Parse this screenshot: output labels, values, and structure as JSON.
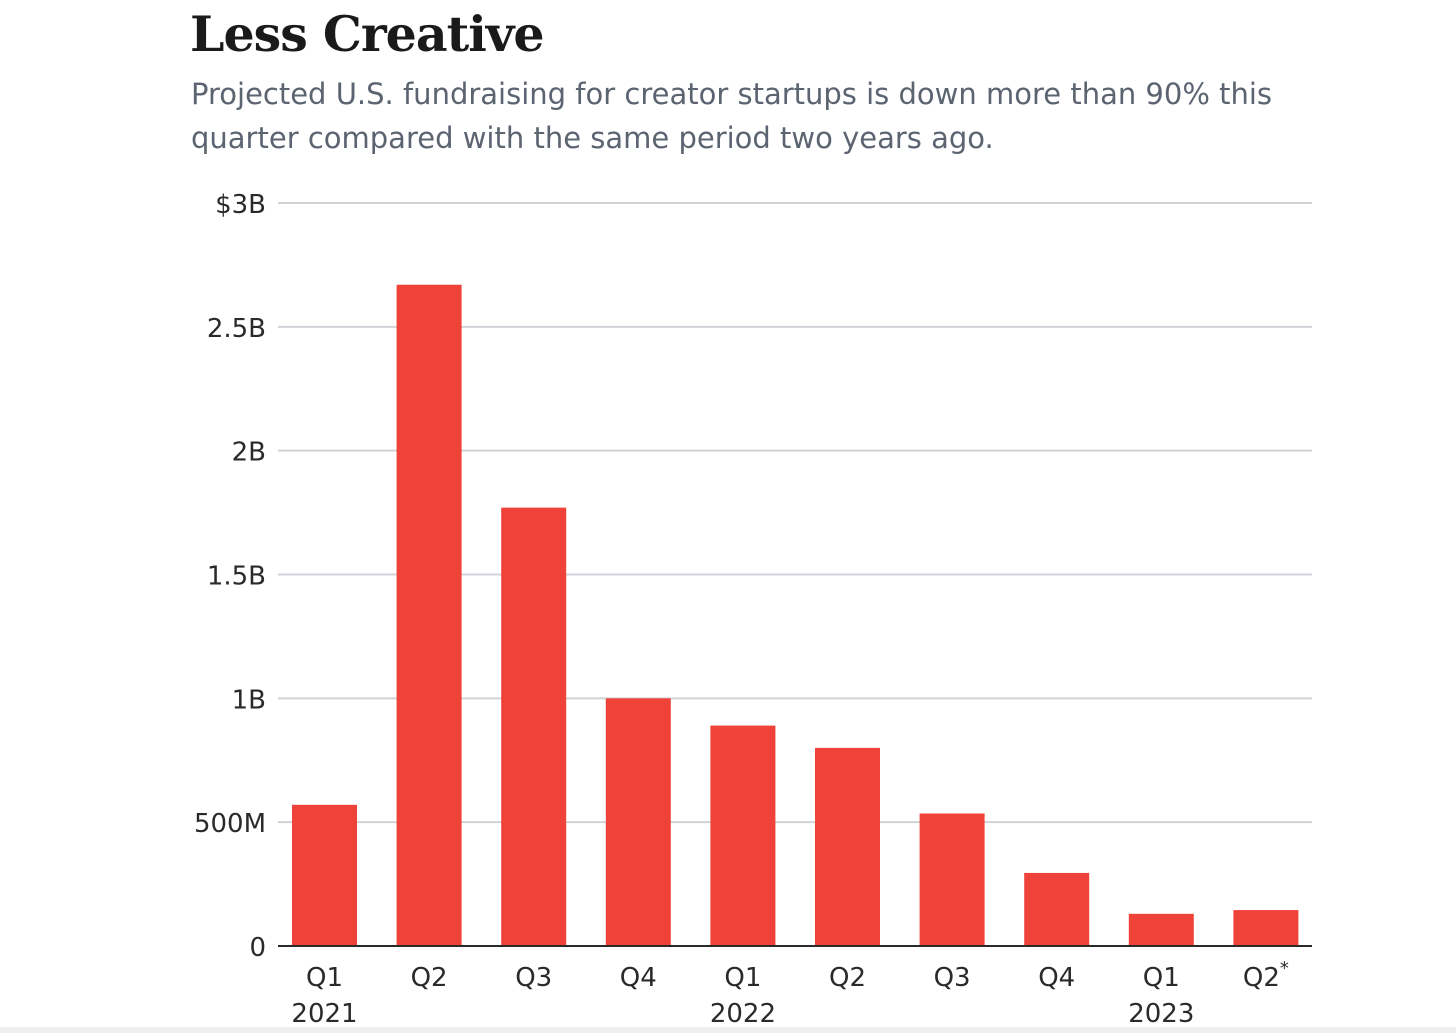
{
  "chart_data": {
    "type": "bar",
    "title": "Less Creative",
    "subtitle": "Projected U.S. fundraising for creator startups is down more than 90% this quarter compared with the same period two years ago.",
    "categories": [
      "Q1",
      "Q2",
      "Q3",
      "Q4",
      "Q1",
      "Q2",
      "Q3",
      "Q4",
      "Q1",
      "Q2"
    ],
    "category_suffix": [
      "",
      "",
      "",
      "",
      "",
      "",
      "",
      "",
      "",
      "*"
    ],
    "year_labels": [
      {
        "label": "2021",
        "index": 0
      },
      {
        "label": "2022",
        "index": 4
      },
      {
        "label": "2023",
        "index": 8
      }
    ],
    "values": [
      570,
      2670,
      1770,
      1000,
      890,
      800,
      535,
      295,
      130,
      145
    ],
    "value_unit": "millions USD",
    "ylim": [
      0,
      3000
    ],
    "y_ticks": [
      {
        "value": 0,
        "label": "0"
      },
      {
        "value": 500,
        "label": "500M"
      },
      {
        "value": 1000,
        "label": "1B"
      },
      {
        "value": 1500,
        "label": "1.5B"
      },
      {
        "value": 2000,
        "label": "2B"
      },
      {
        "value": 2500,
        "label": "2.5B"
      },
      {
        "value": 3000,
        "label": "$3B"
      }
    ],
    "xlabel": "",
    "ylabel": "",
    "grid": true,
    "legend": "none",
    "bar_color": "#ef4238"
  }
}
